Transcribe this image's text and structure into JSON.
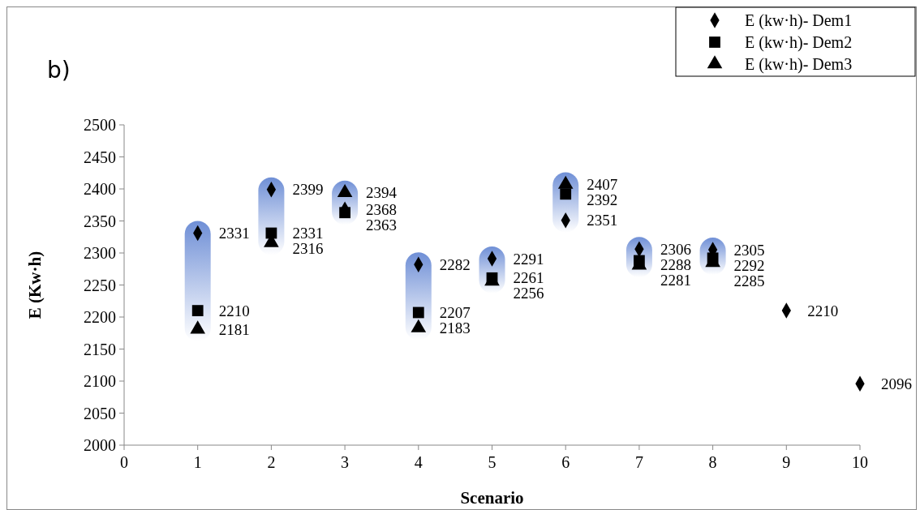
{
  "chart_data": {
    "type": "scatter",
    "title": "b)",
    "xlabel": "Scenario",
    "ylabel": "E (Kw·h)",
    "xlim": [
      0,
      10
    ],
    "xticks": [
      0,
      1,
      2,
      3,
      4,
      5,
      6,
      7,
      8,
      9,
      10
    ],
    "ylim": [
      2000,
      2500
    ],
    "yticks": [
      2000,
      2050,
      2100,
      2150,
      2200,
      2250,
      2300,
      2350,
      2400,
      2450,
      2500
    ],
    "grid": false,
    "legend": "top right",
    "data_labels": true,
    "series": [
      {
        "name": "E (kw·h)- Dem1",
        "color": "#000000",
        "marker": "diamond",
        "x": [
          1,
          2,
          3,
          4,
          5,
          6,
          7,
          8,
          9,
          10
        ],
        "values": [
          2331,
          2399,
          2368,
          2282,
          2291,
          2351,
          2306,
          2305,
          2210,
          2096
        ]
      },
      {
        "name": "E (kw·h)- Dem2",
        "color": "#000000",
        "marker": "square",
        "x": [
          1,
          2,
          3,
          4,
          5,
          6,
          7,
          8
        ],
        "values": [
          2210,
          2331,
          2363,
          2207,
          2261,
          2392,
          2288,
          2292
        ]
      },
      {
        "name": "E (kw·h)- Dem3",
        "color": "#000000",
        "marker": "triangle",
        "x": [
          1,
          2,
          3,
          4,
          5,
          6,
          7,
          8
        ],
        "values": [
          2181,
          2316,
          2394,
          2183,
          2256,
          2407,
          2281,
          2285
        ]
      }
    ]
  }
}
